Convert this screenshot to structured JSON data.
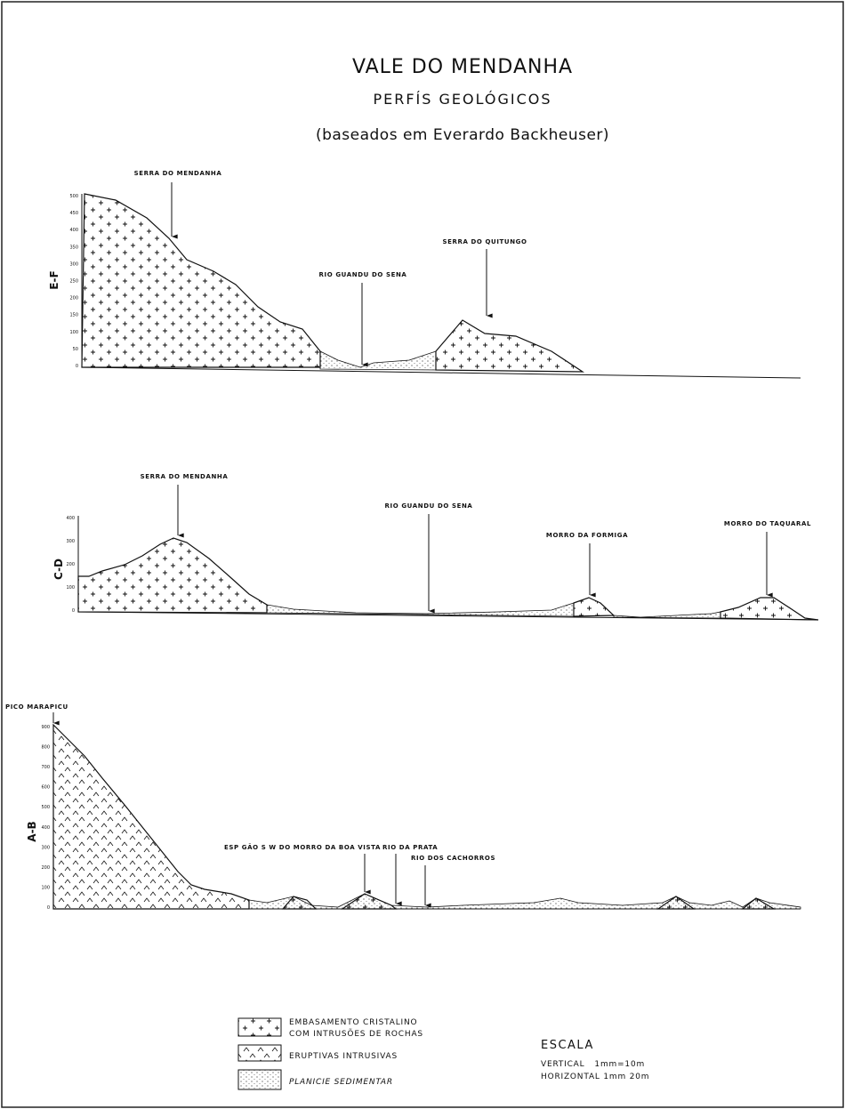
{
  "header": {
    "title": "VALE DO MENDANHA",
    "subtitle": "PERFÍS GEOLÓGICOS",
    "note": "(baseados em Everardo Backheuser)"
  },
  "profiles": [
    {
      "label": "E-F",
      "axis_labels": [
        "0",
        "50",
        "100",
        "150",
        "200",
        "250",
        "300",
        "350",
        "400",
        "450",
        "500"
      ],
      "annotations": [
        "SERRA DO MENDANHA",
        "RIO GUANDU DO SENA",
        "SERRA DO QUITUNGO"
      ]
    },
    {
      "label": "C-D",
      "axis_labels": [
        "0",
        "100",
        "200",
        "300",
        "400"
      ],
      "annotations": [
        "SERRA DO MENDANHA",
        "RIO GUANDU DO SENA",
        "MORRO DA FORMIGA",
        "MORRO DO TAQUARAL"
      ]
    },
    {
      "label": "A-B",
      "axis_labels": [
        "0",
        "100",
        "200",
        "300",
        "400",
        "500",
        "600",
        "700",
        "800",
        "900"
      ],
      "annotations": [
        "PICO MARAPICU",
        "ESP GÃO S W DO MORRO DA BOA VISTA",
        "RIO DA PRATA",
        "RIO DOS CACHORROS"
      ]
    }
  ],
  "legend": {
    "items": [
      {
        "lines": [
          "EMBASAMENTO CRISTALINO",
          "COM INTRUSÕES DE ROCHAS"
        ]
      },
      {
        "lines": [
          "ERUPTIVAS INTRUSIVAS"
        ]
      },
      {
        "lines": [
          "PLANICIE SEDIMENTAR"
        ]
      }
    ]
  },
  "scale": {
    "title": "ESCALA",
    "vertical": "VERTICAL   1mm=10m",
    "horizontal": "HORIZONTAL 1mm 20m"
  }
}
